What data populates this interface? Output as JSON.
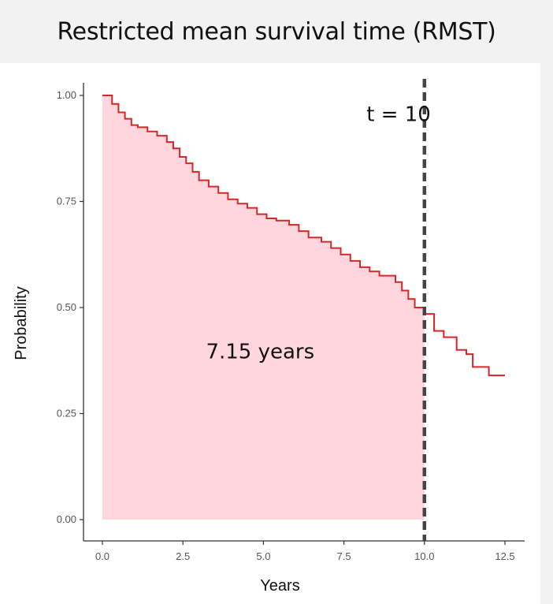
{
  "title": "Restricted mean survival time (RMST)",
  "chart_data": {
    "type": "line",
    "step": true,
    "xlabel": "Years",
    "ylabel": "Probability",
    "xlim": [
      0,
      12.5
    ],
    "ylim": [
      0,
      1
    ],
    "x_ticks": [
      0,
      2.5,
      5,
      7.5,
      10,
      12.5
    ],
    "x_tick_labels": [
      "0.0",
      "2.5",
      "5.0",
      "7.5",
      "10.0",
      "12.5"
    ],
    "y_ticks": [
      0,
      0.25,
      0.5,
      0.75,
      1
    ],
    "y_tick_labels": [
      "0.00",
      "0.25",
      "0.50",
      "0.75",
      "1.00"
    ],
    "grid": false,
    "series": [
      {
        "color": "#d62728",
        "x": [
          0.0,
          0.3,
          0.5,
          0.7,
          0.9,
          1.1,
          1.4,
          1.7,
          2.0,
          2.2,
          2.4,
          2.6,
          2.8,
          3.0,
          3.3,
          3.6,
          3.9,
          4.2,
          4.5,
          4.8,
          5.1,
          5.4,
          5.8,
          6.1,
          6.4,
          6.8,
          7.1,
          7.4,
          7.7,
          8.0,
          8.3,
          8.6,
          8.8,
          9.1,
          9.3,
          9.5,
          9.7,
          10.0,
          10.3,
          10.6,
          11.0,
          11.3,
          11.5,
          12.0,
          12.5
        ],
        "y": [
          1.0,
          0.98,
          0.96,
          0.945,
          0.93,
          0.925,
          0.915,
          0.905,
          0.89,
          0.875,
          0.855,
          0.84,
          0.82,
          0.8,
          0.785,
          0.77,
          0.755,
          0.745,
          0.735,
          0.72,
          0.71,
          0.705,
          0.695,
          0.68,
          0.665,
          0.655,
          0.64,
          0.625,
          0.61,
          0.595,
          0.585,
          0.575,
          0.575,
          0.56,
          0.54,
          0.52,
          0.5,
          0.485,
          0.445,
          0.43,
          0.4,
          0.39,
          0.36,
          0.34,
          0.34
        ]
      }
    ],
    "shaded_area": {
      "x_from": 0,
      "x_to": 10,
      "color": "#ffd6de"
    },
    "vline": {
      "x": 10,
      "style": "dashed",
      "color": "#444444"
    },
    "annotations": [
      {
        "text": "t = 10",
        "x": 8.2,
        "y": 0.94
      },
      {
        "text": "7.15 years",
        "x": 4.9,
        "y": 0.38
      }
    ]
  }
}
